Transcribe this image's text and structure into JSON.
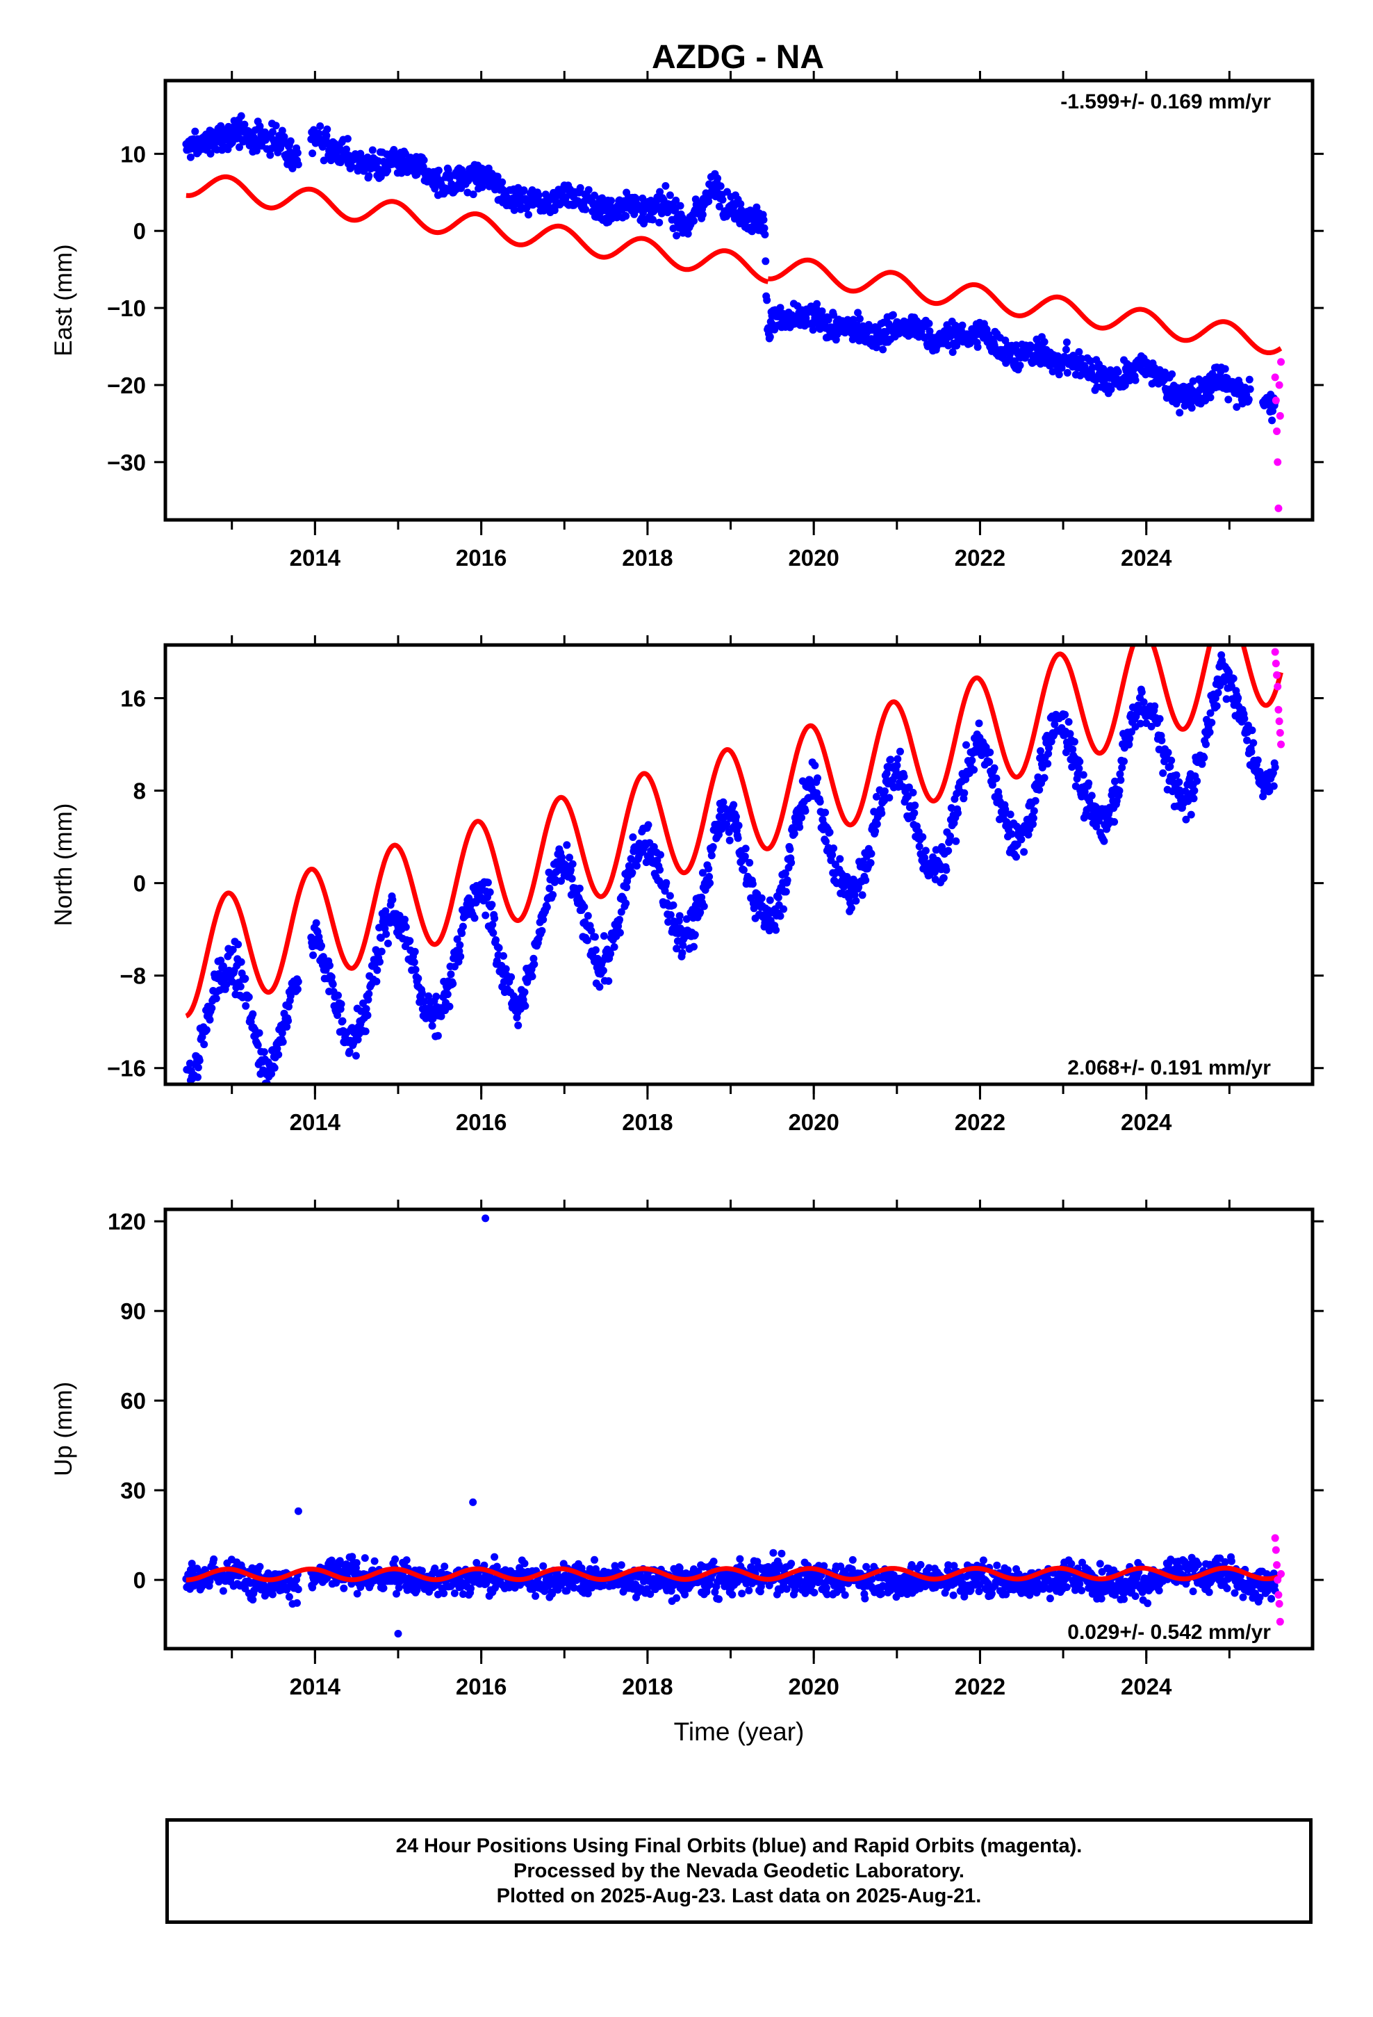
{
  "title": "AZDG - NA",
  "colors": {
    "final_orbits": "#0000ff",
    "rapid_orbits": "#ff00ff",
    "model": "#ff0000",
    "frame": "#000000"
  },
  "footer": {
    "line1": "24 Hour Positions Using Final Orbits (blue) and Rapid Orbits (magenta).",
    "line2": "Processed by the Nevada Geodetic Laboratory.",
    "line3": "Plotted on 2025-Aug-23. Last data on 2025-Aug-21."
  },
  "chart_data": [
    {
      "type": "scatter",
      "title": "AZDG - NA",
      "ylabel": "East (mm)",
      "xlabel": "",
      "xlim": [
        2012.2,
        2026.0
      ],
      "ylim": [
        -37.5,
        19.5
      ],
      "xticks": [
        2014,
        2016,
        2018,
        2020,
        2022,
        2024
      ],
      "yticks": [
        -30,
        -20,
        -10,
        0,
        10
      ],
      "rate_label": "-1.599+/- 0.169 mm/yr",
      "rate_position": "top-right",
      "series": [
        {
          "kind": "final_orbits_daily_positions",
          "color": "#0000ff",
          "trend_x": [
            2012.45,
            2013.0,
            2013.5,
            2013.8,
            2014.0,
            2014.5,
            2015.0,
            2015.5,
            2016.0,
            2016.5,
            2017.0,
            2017.5,
            2018.0,
            2018.5,
            2018.8,
            2019.0,
            2019.4,
            2019.45,
            2019.5,
            2020.0,
            2020.5,
            2021.0,
            2021.5,
            2022.0,
            2022.5,
            2023.0,
            2023.5,
            2024.0,
            2024.5,
            2024.9,
            2025.2,
            2025.55
          ],
          "trend_y": [
            10.5,
            12.5,
            12.0,
            10.0,
            13.0,
            9.0,
            8.0,
            6.5,
            7.0,
            4.0,
            5.0,
            3.0,
            3.5,
            1.0,
            6.0,
            4.0,
            1.5,
            -14.0,
            -11.0,
            -12.0,
            -13.5,
            -12.5,
            -14.0,
            -13.5,
            -16.0,
            -16.5,
            -19.0,
            -18.0,
            -22.0,
            -19.5,
            -21.5,
            -23.0
          ],
          "gaps": [
            [
              2013.8,
              2013.95
            ],
            [
              2025.25,
              2025.4
            ]
          ],
          "scatter_mm": 1.6
        },
        {
          "kind": "rapid_orbits",
          "color": "#ff00ff",
          "x": [
            2025.55,
            2025.56,
            2025.57,
            2025.58,
            2025.59,
            2025.6,
            2025.61,
            2025.62
          ],
          "y": [
            -19,
            -22,
            -26,
            -30,
            -36,
            -20,
            -24,
            -17
          ]
        },
        {
          "kind": "model_fit",
          "color": "#ff0000",
          "rate_mm_per_yr": -1.599,
          "annual_amplitude": 1.6,
          "offsets": [
            {
              "start": 2012.45,
              "end": 2019.45,
              "value_at_start": 4.6
            },
            {
              "start": 2019.45,
              "end": 2025.62,
              "value_at_start": -6.2
            }
          ]
        }
      ]
    },
    {
      "type": "scatter",
      "ylabel": "North (mm)",
      "xlabel": "",
      "xlim": [
        2012.2,
        2026.0
      ],
      "ylim": [
        -17.4,
        20.6
      ],
      "xticks": [
        2014,
        2016,
        2018,
        2020,
        2022,
        2024
      ],
      "yticks": [
        -16,
        -8,
        0,
        8,
        16
      ],
      "rate_label": "2.068+/- 0.191 mm/yr",
      "rate_position": "bottom-right",
      "series": [
        {
          "kind": "final_orbits_daily_positions",
          "color": "#0000ff",
          "trend_x": [
            2012.45,
            2025.55
          ],
          "trend_y": [
            -12.6,
            14.4
          ],
          "seasonal_amplitude": 4.8,
          "scatter_mm": 1.6,
          "gaps": [
            [
              2013.8,
              2013.95
            ]
          ]
        },
        {
          "kind": "rapid_orbits",
          "color": "#ff00ff",
          "x": [
            2025.55,
            2025.56,
            2025.57,
            2025.58,
            2025.59,
            2025.6,
            2025.61,
            2025.62
          ],
          "y": [
            20,
            19,
            18,
            17,
            15,
            14,
            13,
            12
          ]
        },
        {
          "kind": "model_fit",
          "color": "#ff0000",
          "rate_mm_per_yr": 2.068,
          "annual_amplitude": 4.8,
          "value_at_start": -11.5
        }
      ]
    },
    {
      "type": "scatter",
      "ylabel": "Up (mm)",
      "xlabel": "Time (year)",
      "xlim": [
        2012.2,
        2026.0
      ],
      "ylim": [
        -23,
        124
      ],
      "xticks": [
        2014,
        2016,
        2018,
        2020,
        2022,
        2024
      ],
      "yticks": [
        0,
        30,
        60,
        90,
        120
      ],
      "rate_label": "0.029+/- 0.542 mm/yr",
      "rate_position": "bottom-right",
      "series": [
        {
          "kind": "final_orbits_daily_positions",
          "color": "#0000ff",
          "trend_x": [
            2012.45,
            2025.55
          ],
          "trend_y": [
            1.0,
            0.5
          ],
          "scatter_mm": 4.5,
          "gaps": [
            [
              2013.8,
              2013.95
            ]
          ],
          "outliers": [
            {
              "x": 2016.05,
              "y": 121
            },
            {
              "x": 2013.8,
              "y": 23
            },
            {
              "x": 2015.9,
              "y": 26
            },
            {
              "x": 2015.0,
              "y": -18
            }
          ]
        },
        {
          "kind": "rapid_orbits",
          "color": "#ff00ff",
          "x": [
            2025.55,
            2025.56,
            2025.57,
            2025.58,
            2025.59,
            2025.6,
            2025.61,
            2025.62
          ],
          "y": [
            14,
            10,
            5,
            0,
            -5,
            -8,
            -14,
            2
          ]
        },
        {
          "kind": "model_fit",
          "color": "#ff0000",
          "rate_mm_per_yr": 0.029,
          "annual_amplitude": 1.8,
          "value_at_start": 0
        }
      ]
    }
  ]
}
